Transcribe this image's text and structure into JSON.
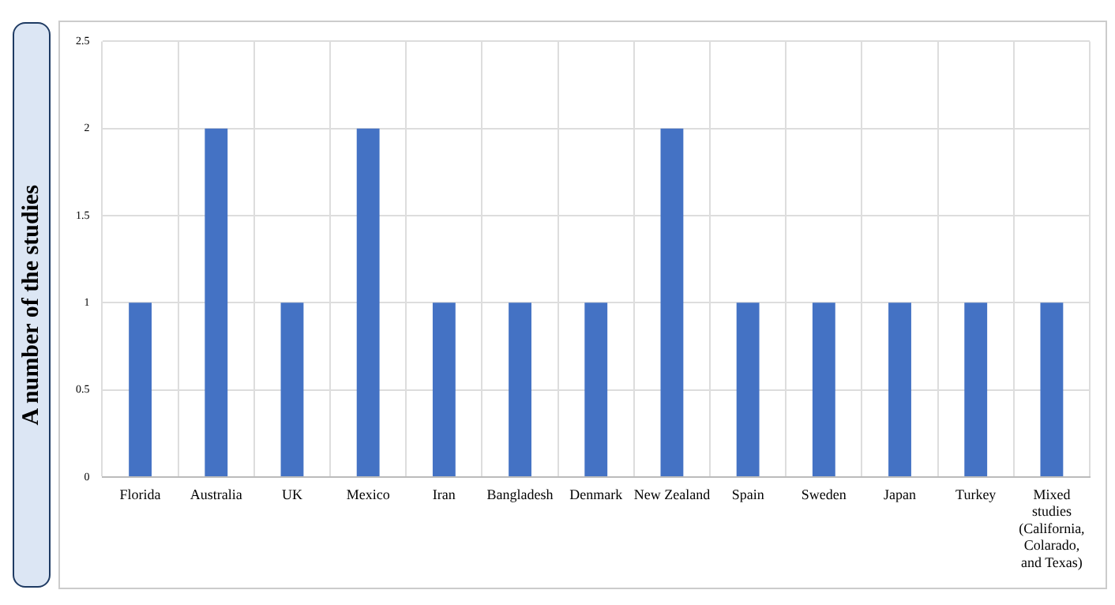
{
  "chart_data": {
    "type": "bar",
    "ylabel": "A number of the studies",
    "categories": [
      "Florida",
      "Australia",
      "UK",
      "Mexico",
      "Iran",
      "Bangladesh",
      "Denmark",
      "New Zealand",
      "Spain",
      "Sweden",
      "Japan",
      "Turkey",
      "Mixed studies (California, Colarado, and Texas)"
    ],
    "values": [
      1,
      2,
      1,
      2,
      1,
      1,
      1,
      2,
      1,
      1,
      1,
      1,
      1
    ],
    "color": "#4472c4",
    "ylim": [
      0,
      2.5
    ],
    "yticks": [
      0,
      0.5,
      1,
      1.5,
      2,
      2.5
    ],
    "grid": true
  }
}
